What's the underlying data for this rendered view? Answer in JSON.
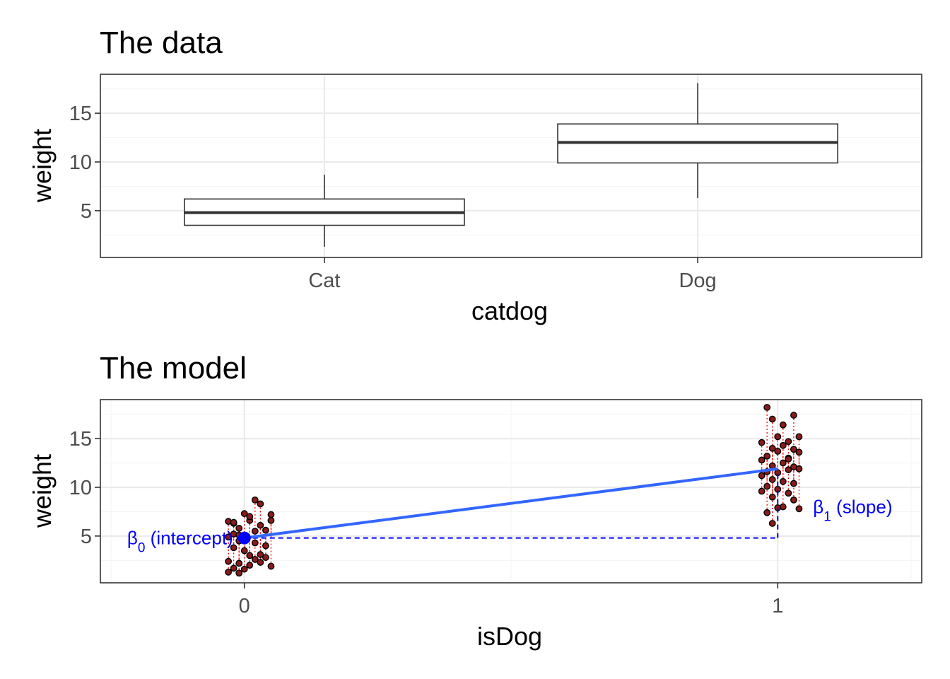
{
  "chart_data": [
    {
      "type": "boxplot",
      "title": "The data",
      "xlabel": "catdog",
      "ylabel": "weight",
      "ylim": [
        0.2,
        19
      ],
      "y_ticks": [
        "5",
        "10",
        "15"
      ],
      "grid": true,
      "categories": [
        "Cat",
        "Dog"
      ],
      "boxes": [
        {
          "category": "Cat",
          "whisker_low": 1.3,
          "q1": 3.5,
          "median": 4.8,
          "q3": 6.2,
          "whisker_high": 8.7
        },
        {
          "category": "Dog",
          "whisker_low": 6.3,
          "q1": 9.9,
          "median": 12.0,
          "q3": 13.9,
          "whisker_high": 18.1
        }
      ]
    },
    {
      "type": "scatter",
      "title": "The model",
      "xlabel": "isDog",
      "ylabel": "weight",
      "xlim": [
        -0.27,
        1.27
      ],
      "ylim": [
        0.2,
        19
      ],
      "x_ticks": [
        "0",
        "1"
      ],
      "y_ticks": [
        "5",
        "10",
        "15"
      ],
      "grid": true,
      "points": [
        {
          "x": -0.03,
          "y": 6.5
        },
        {
          "x": -0.02,
          "y": 6.3
        },
        {
          "x": 0.01,
          "y": 6.6
        },
        {
          "x": 0.03,
          "y": 6.1
        },
        {
          "x": -0.01,
          "y": 5.8
        },
        {
          "x": 0.02,
          "y": 5.5
        },
        {
          "x": -0.02,
          "y": 5.2
        },
        {
          "x": 0.0,
          "y": 7.3
        },
        {
          "x": 0.02,
          "y": 8.7
        },
        {
          "x": 0.03,
          "y": 8.3
        },
        {
          "x": 0.01,
          "y": 7.0
        },
        {
          "x": 0.05,
          "y": 6.6
        },
        {
          "x": 0.04,
          "y": 5.6
        },
        {
          "x": -0.03,
          "y": 4.9
        },
        {
          "x": -0.01,
          "y": 4.5
        },
        {
          "x": 0.02,
          "y": 4.3
        },
        {
          "x": 0.04,
          "y": 4.0
        },
        {
          "x": -0.02,
          "y": 3.8
        },
        {
          "x": 0.0,
          "y": 3.5
        },
        {
          "x": 0.03,
          "y": 3.1
        },
        {
          "x": -0.03,
          "y": 2.4
        },
        {
          "x": -0.01,
          "y": 2.2
        },
        {
          "x": 0.01,
          "y": 2.0
        },
        {
          "x": 0.03,
          "y": 2.3
        },
        {
          "x": 0.04,
          "y": 2.8
        },
        {
          "x": 0.05,
          "y": 1.9
        },
        {
          "x": -0.02,
          "y": 1.7
        },
        {
          "x": 0.0,
          "y": 1.6
        },
        {
          "x": -0.03,
          "y": 1.3
        },
        {
          "x": -0.01,
          "y": 1.2
        },
        {
          "x": 0.02,
          "y": 2.6
        },
        {
          "x": -0.02,
          "y": 6.4
        },
        {
          "x": 0.05,
          "y": 7.2
        },
        {
          "x": 0.01,
          "y": 3.0
        },
        {
          "x": -0.01,
          "y": 5.1
        },
        {
          "x": 0.98,
          "y": 18.2
        },
        {
          "x": 0.99,
          "y": 17.0
        },
        {
          "x": 1.03,
          "y": 17.4
        },
        {
          "x": 1.01,
          "y": 16.4
        },
        {
          "x": 1.0,
          "y": 15.2
        },
        {
          "x": 1.04,
          "y": 15.2
        },
        {
          "x": 0.97,
          "y": 14.6
        },
        {
          "x": 1.02,
          "y": 14.7
        },
        {
          "x": 0.99,
          "y": 14.0
        },
        {
          "x": 1.01,
          "y": 14.3
        },
        {
          "x": 1.03,
          "y": 13.9
        },
        {
          "x": 1.0,
          "y": 13.7
        },
        {
          "x": 0.98,
          "y": 13.2
        },
        {
          "x": 1.02,
          "y": 13.0
        },
        {
          "x": 1.04,
          "y": 13.6
        },
        {
          "x": 0.97,
          "y": 12.8
        },
        {
          "x": 1.01,
          "y": 12.5
        },
        {
          "x": 0.99,
          "y": 12.2
        },
        {
          "x": 1.03,
          "y": 12.1
        },
        {
          "x": 0.98,
          "y": 11.6
        },
        {
          "x": 1.0,
          "y": 11.5
        },
        {
          "x": 1.02,
          "y": 11.8
        },
        {
          "x": 1.04,
          "y": 11.9
        },
        {
          "x": 0.97,
          "y": 11.2
        },
        {
          "x": 0.99,
          "y": 10.8
        },
        {
          "x": 1.01,
          "y": 10.6
        },
        {
          "x": 0.98,
          "y": 10.1
        },
        {
          "x": 1.0,
          "y": 9.8
        },
        {
          "x": 1.02,
          "y": 9.4
        },
        {
          "x": 0.99,
          "y": 9.0
        },
        {
          "x": 1.03,
          "y": 8.7
        },
        {
          "x": 1.01,
          "y": 8.0
        },
        {
          "x": 1.04,
          "y": 7.8
        },
        {
          "x": 1.0,
          "y": 7.9
        },
        {
          "x": 0.98,
          "y": 7.4
        },
        {
          "x": 0.99,
          "y": 6.3
        },
        {
          "x": 1.02,
          "y": 12.9
        },
        {
          "x": 0.97,
          "y": 9.6
        },
        {
          "x": 1.03,
          "y": 10.4
        }
      ],
      "fit": {
        "intercept": 4.8,
        "slope": 7.1
      },
      "annotations": {
        "b0_symbol": "β",
        "b0_sub": "0",
        "b0_text": " (intercept)",
        "b1_symbol": "β",
        "b1_sub": "1",
        "b1_text": " (slope)"
      },
      "colors": {
        "fit_line": "#3366ff",
        "annotation": "#0000ff",
        "residual": "#ff0000",
        "point_fill": "#8b1a1a"
      }
    }
  ]
}
